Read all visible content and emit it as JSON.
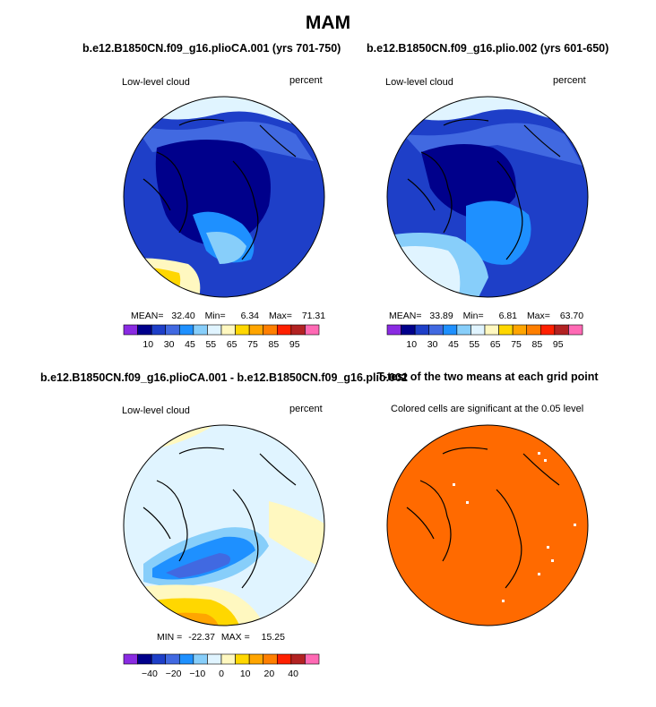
{
  "main_title": "MAM",
  "chart_data": [
    {
      "type": "heatmap",
      "projection": "north-polar-stereographic",
      "title": "b.e12.B1850CN.f09_g16.plioCA.001 (yrs 701-750)",
      "left_label": "Low-level cloud",
      "right_label": "percent",
      "stats": {
        "mean_label": "MEAN=",
        "mean": "32.40",
        "min_label": "Min=",
        "min": "6.34",
        "max_label": "Max=",
        "max": "71.31"
      },
      "colorbar": {
        "ticks": [
          "10",
          "30",
          "45",
          "55",
          "65",
          "75",
          "85",
          "95"
        ],
        "colors": [
          "#8a2be2",
          "#00008b",
          "#1e3fc8",
          "#4169e1",
          "#1e90ff",
          "#87cefa",
          "#e0f4ff",
          "#fff8c0",
          "#ffd700",
          "#ffa500",
          "#ff7f00",
          "#ff2000",
          "#b22222",
          "#ff69b4"
        ]
      }
    },
    {
      "type": "heatmap",
      "projection": "north-polar-stereographic",
      "title": "b.e12.B1850CN.f09_g16.plio.002 (yrs 601-650)",
      "left_label": "Low-level cloud",
      "right_label": "percent",
      "stats": {
        "mean_label": "MEAN=",
        "mean": "33.89",
        "min_label": "Min=",
        "min": "6.81",
        "max_label": "Max=",
        "max": "63.70"
      },
      "colorbar": {
        "ticks": [
          "10",
          "30",
          "45",
          "55",
          "65",
          "75",
          "85",
          "95"
        ],
        "colors": [
          "#8a2be2",
          "#00008b",
          "#1e3fc8",
          "#4169e1",
          "#1e90ff",
          "#87cefa",
          "#e0f4ff",
          "#fff8c0",
          "#ffd700",
          "#ffa500",
          "#ff7f00",
          "#ff2000",
          "#b22222",
          "#ff69b4"
        ]
      }
    },
    {
      "type": "heatmap",
      "projection": "north-polar-stereographic",
      "title": "b.e12.B1850CN.f09_g16.plioCA.001 - b.e12.B1850CN.f09_g16.plio.002",
      "left_label": "Low-level cloud",
      "right_label": "percent",
      "stats": {
        "min_label": "MIN =",
        "min": "-22.37",
        "max_label": "MAX =",
        "max": "15.25"
      },
      "colorbar": {
        "ticks": [
          "−40",
          "−20",
          "−10",
          "0",
          "10",
          "20",
          "40"
        ],
        "colors": [
          "#8a2be2",
          "#00008b",
          "#1e3fc8",
          "#4169e1",
          "#1e90ff",
          "#87cefa",
          "#e0f4ff",
          "#fff8c0",
          "#ffd700",
          "#ffa500",
          "#ff7f00",
          "#ff2000",
          "#b22222",
          "#ff69b4"
        ]
      }
    },
    {
      "type": "heatmap",
      "projection": "north-polar-stereographic",
      "title": "T-test of the two means at each grid point",
      "left_label": "Colored cells are significant at the 0.05 level",
      "fill_color": "#ff6a00"
    }
  ]
}
